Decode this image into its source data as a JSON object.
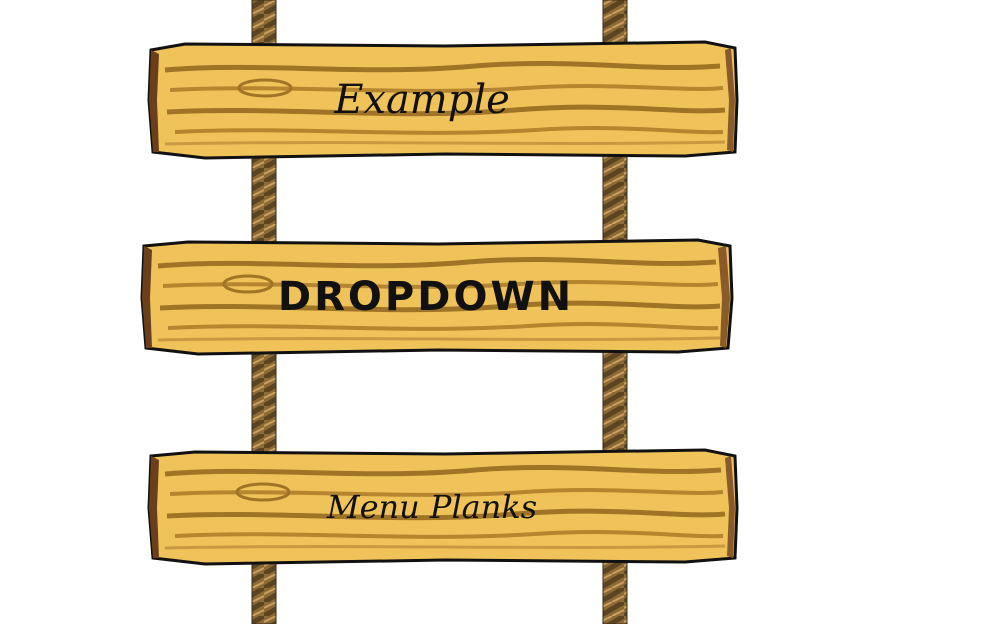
{
  "menu": {
    "planks": [
      {
        "label": "Example"
      },
      {
        "label": "DROPDOWN"
      },
      {
        "label": "Menu Planks"
      }
    ]
  },
  "colors": {
    "wood_light": "#f3c65d",
    "wood_mid": "#d9a43c",
    "wood_grain": "#a07426",
    "wood_edge": "#6b3f1c",
    "rope_light": "#b08a4a",
    "rope_dark": "#5b4422",
    "outline": "#111111",
    "background": "#ffffff"
  }
}
